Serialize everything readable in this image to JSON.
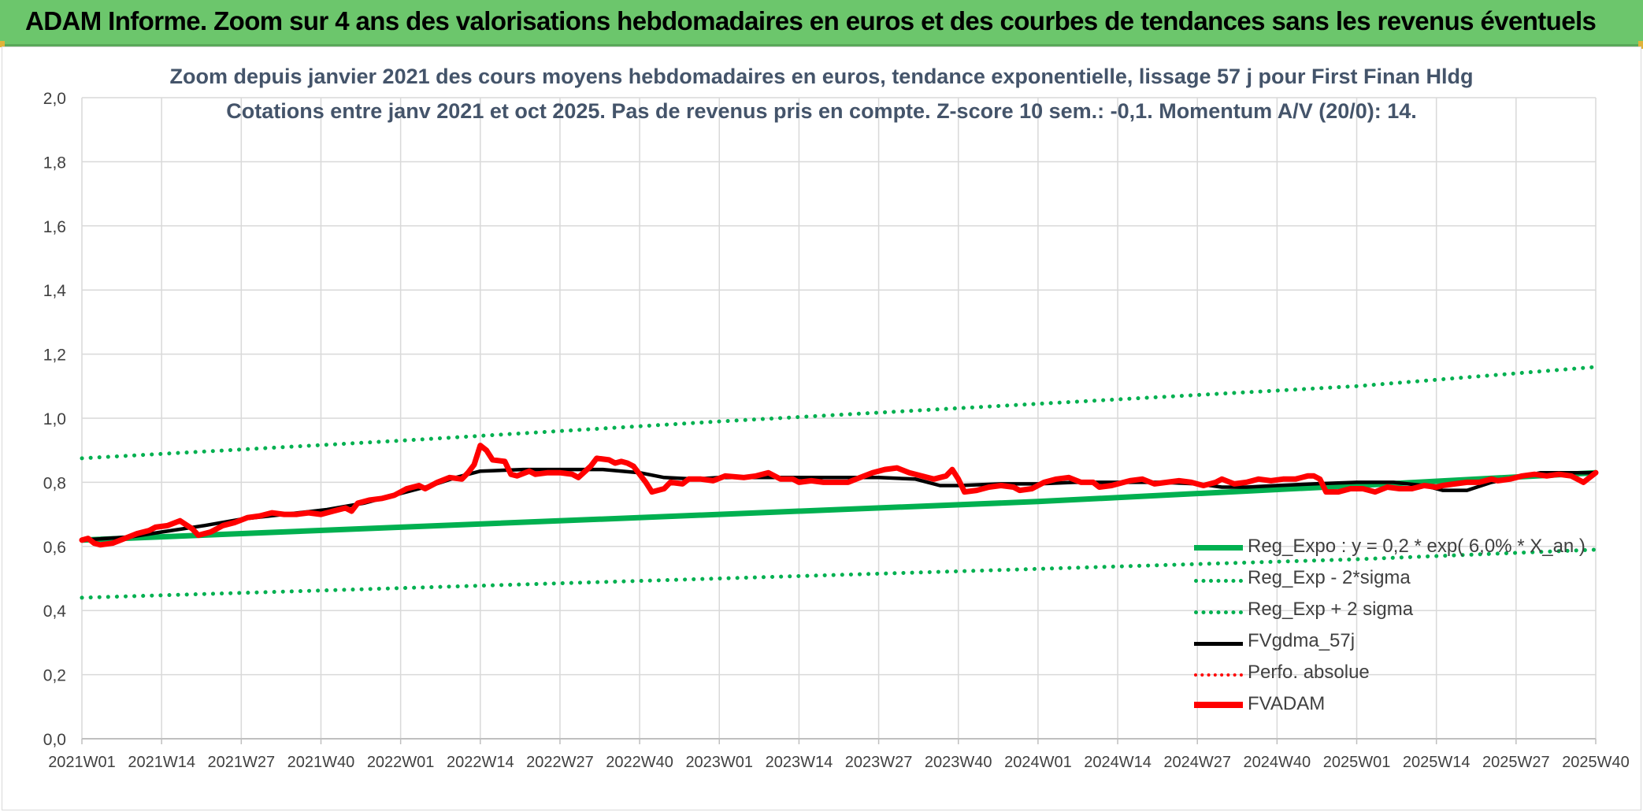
{
  "banner": {
    "title": "ADAM Informe. Zoom sur 4 ans des valorisations hebdomadaires en euros et des courbes de tendances sans les revenus éventuels"
  },
  "colors": {
    "banner": "#6cc66c",
    "regression": "#00b050",
    "sigma_bands": "#00b050",
    "moving_average": "#000000",
    "perfo_absolue": "#ff0000",
    "fvadam": "#ff0000",
    "title_text": "#44546a",
    "axis_text": "#404040",
    "grid": "#d9d9d9"
  },
  "chart_data": {
    "type": "line",
    "title": "Zoom depuis janvier 2021 des cours moyens hebdomadaires en euros, tendance exponentielle, lissage 57 j pour First Finan Hldg",
    "subtitle": "Cotations entre janv 2021 et oct 2025. Pas de revenus pris en compte. Z-score 10 sem.: -0,1. Momentum A/V (20/0): 14.",
    "xlabel": "",
    "ylabel": "",
    "ylim": [
      0,
      2.0
    ],
    "yticks": [
      "0,0",
      "0,2",
      "0,4",
      "0,6",
      "0,8",
      "1,0",
      "1,2",
      "1,4",
      "1,6",
      "1,8",
      "2,0"
    ],
    "x_range_weeks": [
      0,
      247
    ],
    "x_ticks": [
      {
        "label": "2021W01",
        "week": 0
      },
      {
        "label": "2021W14",
        "week": 13
      },
      {
        "label": "2021W27",
        "week": 26
      },
      {
        "label": "2021W40",
        "week": 39
      },
      {
        "label": "2022W01",
        "week": 52
      },
      {
        "label": "2022W14",
        "week": 65
      },
      {
        "label": "2022W27",
        "week": 78
      },
      {
        "label": "2022W40",
        "week": 91
      },
      {
        "label": "2023W01",
        "week": 104
      },
      {
        "label": "2023W14",
        "week": 117
      },
      {
        "label": "2023W27",
        "week": 130
      },
      {
        "label": "2023W40",
        "week": 143
      },
      {
        "label": "2024W01",
        "week": 156
      },
      {
        "label": "2024W14",
        "week": 169
      },
      {
        "label": "2024W27",
        "week": 182
      },
      {
        "label": "2024W40",
        "week": 195
      },
      {
        "label": "2025W01",
        "week": 208
      },
      {
        "label": "2025W14",
        "week": 221
      },
      {
        "label": "2025W27",
        "week": 234
      },
      {
        "label": "2025W40",
        "week": 247
      }
    ],
    "grid": true,
    "legend_position": "bottom-right",
    "series": [
      {
        "name": "Reg_Expo : y = 0,2 * exp( 6,0% * X_an )",
        "style": "solid-thick",
        "points": [
          [
            0,
            0.62
          ],
          [
            52,
            0.66
          ],
          [
            104,
            0.7
          ],
          [
            156,
            0.74
          ],
          [
            208,
            0.79
          ],
          [
            247,
            0.83
          ]
        ]
      },
      {
        "name": "Reg_Exp - 2*sigma",
        "style": "dotted",
        "points": [
          [
            0,
            0.44
          ],
          [
            52,
            0.47
          ],
          [
            104,
            0.5
          ],
          [
            156,
            0.53
          ],
          [
            208,
            0.56
          ],
          [
            247,
            0.59
          ]
        ]
      },
      {
        "name": "Reg_Exp + 2 sigma",
        "style": "dotted",
        "points": [
          [
            0,
            0.875
          ],
          [
            52,
            0.93
          ],
          [
            104,
            0.99
          ],
          [
            156,
            1.045
          ],
          [
            208,
            1.1
          ],
          [
            247,
            1.16
          ]
        ]
      },
      {
        "name": "FVgdma_57j",
        "style": "solid",
        "points": [
          [
            0,
            0.62
          ],
          [
            8,
            0.63
          ],
          [
            13,
            0.645
          ],
          [
            20,
            0.665
          ],
          [
            26,
            0.685
          ],
          [
            33,
            0.7
          ],
          [
            40,
            0.715
          ],
          [
            46,
            0.735
          ],
          [
            52,
            0.765
          ],
          [
            57,
            0.79
          ],
          [
            61,
            0.815
          ],
          [
            65,
            0.835
          ],
          [
            72,
            0.84
          ],
          [
            78,
            0.84
          ],
          [
            85,
            0.84
          ],
          [
            91,
            0.83
          ],
          [
            95,
            0.815
          ],
          [
            100,
            0.81
          ],
          [
            104,
            0.815
          ],
          [
            110,
            0.815
          ],
          [
            117,
            0.815
          ],
          [
            124,
            0.815
          ],
          [
            130,
            0.815
          ],
          [
            136,
            0.81
          ],
          [
            140,
            0.79
          ],
          [
            143,
            0.79
          ],
          [
            150,
            0.795
          ],
          [
            156,
            0.795
          ],
          [
            162,
            0.8
          ],
          [
            169,
            0.8
          ],
          [
            176,
            0.8
          ],
          [
            182,
            0.795
          ],
          [
            186,
            0.785
          ],
          [
            190,
            0.785
          ],
          [
            195,
            0.79
          ],
          [
            201,
            0.795
          ],
          [
            208,
            0.8
          ],
          [
            214,
            0.8
          ],
          [
            219,
            0.79
          ],
          [
            222,
            0.775
          ],
          [
            226,
            0.775
          ],
          [
            230,
            0.8
          ],
          [
            234,
            0.815
          ],
          [
            238,
            0.83
          ],
          [
            243,
            0.83
          ],
          [
            247,
            0.83
          ]
        ]
      },
      {
        "name": "Perfo. absolue",
        "style": "dotted-red",
        "points": []
      },
      {
        "name": "FVADAM",
        "style": "solid-thick",
        "points": [
          [
            0,
            0.62
          ],
          [
            1,
            0.625
          ],
          [
            2,
            0.61
          ],
          [
            3,
            0.605
          ],
          [
            5,
            0.61
          ],
          [
            7,
            0.625
          ],
          [
            9,
            0.64
          ],
          [
            11,
            0.65
          ],
          [
            12,
            0.66
          ],
          [
            14,
            0.665
          ],
          [
            16,
            0.68
          ],
          [
            18,
            0.655
          ],
          [
            19,
            0.635
          ],
          [
            21,
            0.645
          ],
          [
            23,
            0.665
          ],
          [
            25,
            0.675
          ],
          [
            27,
            0.69
          ],
          [
            29,
            0.695
          ],
          [
            31,
            0.705
          ],
          [
            33,
            0.7
          ],
          [
            35,
            0.7
          ],
          [
            37,
            0.705
          ],
          [
            39,
            0.7
          ],
          [
            41,
            0.71
          ],
          [
            43,
            0.72
          ],
          [
            44,
            0.71
          ],
          [
            45,
            0.735
          ],
          [
            47,
            0.745
          ],
          [
            49,
            0.75
          ],
          [
            51,
            0.76
          ],
          [
            53,
            0.78
          ],
          [
            55,
            0.79
          ],
          [
            56,
            0.78
          ],
          [
            58,
            0.8
          ],
          [
            60,
            0.815
          ],
          [
            62,
            0.81
          ],
          [
            63,
            0.83
          ],
          [
            64,
            0.855
          ],
          [
            65,
            0.915
          ],
          [
            66,
            0.9
          ],
          [
            67,
            0.87
          ],
          [
            69,
            0.865
          ],
          [
            70,
            0.825
          ],
          [
            71,
            0.82
          ],
          [
            73,
            0.835
          ],
          [
            74,
            0.825
          ],
          [
            76,
            0.83
          ],
          [
            78,
            0.83
          ],
          [
            80,
            0.825
          ],
          [
            81,
            0.815
          ],
          [
            83,
            0.85
          ],
          [
            84,
            0.875
          ],
          [
            86,
            0.87
          ],
          [
            87,
            0.86
          ],
          [
            88,
            0.865
          ],
          [
            89,
            0.86
          ],
          [
            90,
            0.85
          ],
          [
            92,
            0.8
          ],
          [
            93,
            0.77
          ],
          [
            95,
            0.78
          ],
          [
            96,
            0.8
          ],
          [
            98,
            0.795
          ],
          [
            99,
            0.81
          ],
          [
            101,
            0.81
          ],
          [
            103,
            0.805
          ],
          [
            105,
            0.82
          ],
          [
            108,
            0.815
          ],
          [
            110,
            0.82
          ],
          [
            112,
            0.83
          ],
          [
            114,
            0.81
          ],
          [
            116,
            0.81
          ],
          [
            117,
            0.8
          ],
          [
            119,
            0.805
          ],
          [
            121,
            0.8
          ],
          [
            123,
            0.8
          ],
          [
            125,
            0.8
          ],
          [
            127,
            0.815
          ],
          [
            129,
            0.83
          ],
          [
            131,
            0.84
          ],
          [
            133,
            0.845
          ],
          [
            135,
            0.83
          ],
          [
            137,
            0.82
          ],
          [
            139,
            0.81
          ],
          [
            141,
            0.82
          ],
          [
            142,
            0.84
          ],
          [
            143,
            0.81
          ],
          [
            144,
            0.77
          ],
          [
            146,
            0.775
          ],
          [
            148,
            0.785
          ],
          [
            150,
            0.79
          ],
          [
            152,
            0.785
          ],
          [
            153,
            0.775
          ],
          [
            155,
            0.78
          ],
          [
            157,
            0.8
          ],
          [
            159,
            0.81
          ],
          [
            161,
            0.815
          ],
          [
            163,
            0.8
          ],
          [
            165,
            0.8
          ],
          [
            166,
            0.785
          ],
          [
            168,
            0.79
          ],
          [
            170,
            0.8
          ],
          [
            171,
            0.805
          ],
          [
            173,
            0.81
          ],
          [
            175,
            0.795
          ],
          [
            177,
            0.8
          ],
          [
            179,
            0.805
          ],
          [
            181,
            0.8
          ],
          [
            183,
            0.79
          ],
          [
            185,
            0.8
          ],
          [
            186,
            0.81
          ],
          [
            188,
            0.795
          ],
          [
            190,
            0.8
          ],
          [
            192,
            0.81
          ],
          [
            194,
            0.805
          ],
          [
            196,
            0.81
          ],
          [
            198,
            0.81
          ],
          [
            200,
            0.82
          ],
          [
            201,
            0.82
          ],
          [
            202,
            0.81
          ],
          [
            203,
            0.77
          ],
          [
            205,
            0.77
          ],
          [
            207,
            0.78
          ],
          [
            209,
            0.78
          ],
          [
            211,
            0.77
          ],
          [
            213,
            0.785
          ],
          [
            215,
            0.78
          ],
          [
            217,
            0.78
          ],
          [
            219,
            0.79
          ],
          [
            221,
            0.785
          ],
          [
            222,
            0.79
          ],
          [
            224,
            0.795
          ],
          [
            226,
            0.8
          ],
          [
            228,
            0.8
          ],
          [
            230,
            0.81
          ],
          [
            231,
            0.805
          ],
          [
            233,
            0.81
          ],
          [
            235,
            0.82
          ],
          [
            237,
            0.825
          ],
          [
            239,
            0.82
          ],
          [
            241,
            0.825
          ],
          [
            243,
            0.82
          ],
          [
            245,
            0.8
          ],
          [
            247,
            0.83
          ]
        ]
      }
    ]
  },
  "legend": {
    "items": [
      {
        "label": "Reg_Expo : y = 0,2 * exp( 6,0% * X_an )"
      },
      {
        "label": "Reg_Exp - 2*sigma"
      },
      {
        "label": "Reg_Exp + 2 sigma"
      },
      {
        "label": "FVgdma_57j"
      },
      {
        "label": "Perfo. absolue"
      },
      {
        "label": "FVADAM"
      }
    ]
  }
}
